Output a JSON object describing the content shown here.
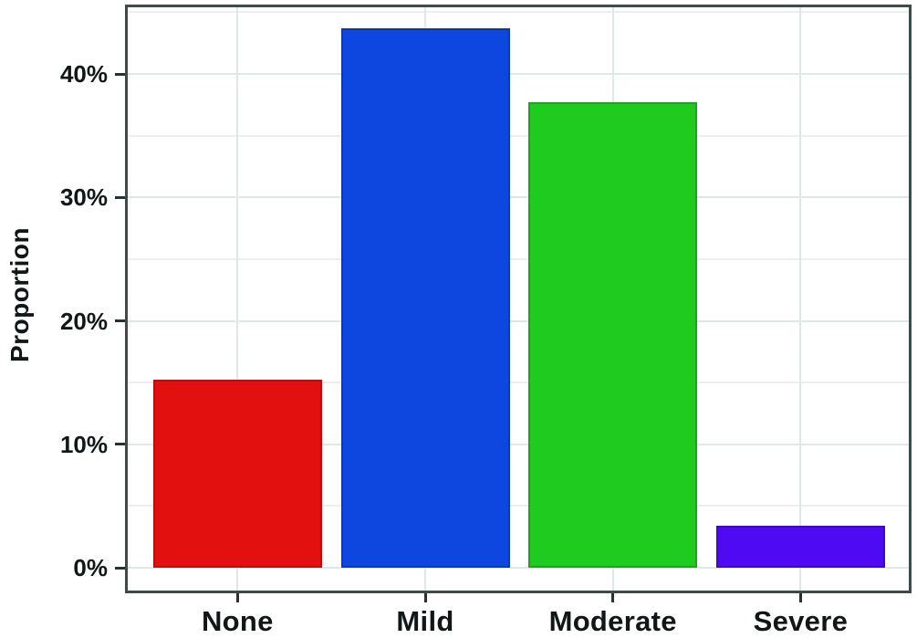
{
  "chart_data": {
    "type": "bar",
    "title": "",
    "xlabel": "",
    "ylabel": "Proportion",
    "categories": [
      "None",
      "Mild",
      "Moderate",
      "Severe"
    ],
    "values": [
      15.2,
      43.7,
      37.7,
      3.4
    ],
    "bar_colors": [
      "#e31010",
      "#0d47e0",
      "#20cb20",
      "#4e0af2"
    ],
    "y_ticks": [
      {
        "value": 0,
        "label": "0%"
      },
      {
        "value": 10,
        "label": "10%"
      },
      {
        "value": 20,
        "label": "20%"
      },
      {
        "value": 30,
        "label": "30%"
      },
      {
        "value": 40,
        "label": "40%"
      }
    ],
    "y_minor_ticks": [
      5,
      15,
      25,
      35,
      45
    ],
    "ylim": [
      -2.1,
      45.7
    ],
    "grid": true,
    "legend": "none",
    "colors": {
      "panel_border": "#3e4a4b",
      "grid_major": "#dfe7e7",
      "grid_minor": "#eaf0f0",
      "tick_mark": "#273232",
      "text": "#111616",
      "background": "#ffffff"
    }
  }
}
